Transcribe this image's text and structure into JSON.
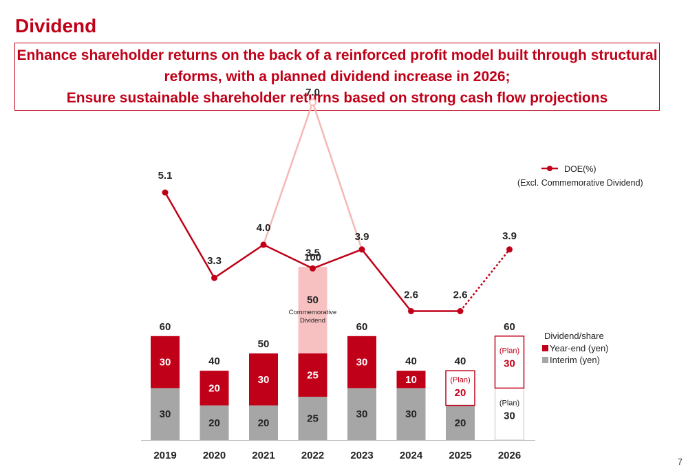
{
  "page": {
    "title": "Dividend",
    "page_number": "7"
  },
  "headline": {
    "line1": "Enhance shareholder returns on the back of a reinforced profit model built through structural",
    "line2": "reforms, with a planned dividend increase in 2026;",
    "line3": "Ensure sustainable shareholder returns based on strong cash flow projections"
  },
  "colors": {
    "brand": "#c00018",
    "interim": "#a6a6a6",
    "commemorative": "#f8c1c1",
    "doe_incl_commemorative": "#f5b8b4"
  },
  "chart_data": {
    "type": "bar",
    "stacked": true,
    "categories": [
      "2019",
      "2020",
      "2021",
      "2022",
      "2023",
      "2024",
      "2025",
      "2026"
    ],
    "series": [
      {
        "name": "Interim (yen)",
        "values": [
          30,
          20,
          20,
          25,
          30,
          30,
          20,
          30
        ],
        "labels": [
          "30",
          "20",
          "20",
          "25",
          "30",
          "30",
          "20",
          "30"
        ]
      },
      {
        "name": "Year-end (yen)",
        "values": [
          30,
          20,
          30,
          25,
          30,
          10,
          20,
          30
        ],
        "labels": [
          "30",
          "20",
          "30",
          "25",
          "30",
          "10",
          "20",
          "30"
        ]
      },
      {
        "name": "Commemorative Dividend",
        "values": [
          0,
          0,
          0,
          50,
          0,
          0,
          0,
          0
        ],
        "labels": [
          "",
          "",
          "",
          "50",
          "",
          "",
          "",
          ""
        ]
      }
    ],
    "totals": [
      "60",
      "40",
      "50",
      "100",
      "60",
      "40",
      "40",
      "60"
    ],
    "plan_tag": "(Plan)",
    "plan_flags": {
      "interim": [
        false,
        false,
        false,
        false,
        false,
        false,
        false,
        true
      ],
      "year_end": [
        false,
        false,
        false,
        false,
        false,
        false,
        true,
        true
      ]
    },
    "commemorative_label": [
      "Commemorative",
      "Dividend"
    ],
    "legend": {
      "title": "Dividend/share",
      "year_end": "Year-end (yen)",
      "interim": "Interim (yen)"
    },
    "bar_ylim": [
      0,
      100
    ],
    "doe": {
      "name": "DOE(%)",
      "subtitle": "(Excl. Commemorative Dividend)",
      "values": [
        5.1,
        3.3,
        4.0,
        3.5,
        3.9,
        2.6,
        2.6,
        3.9
      ],
      "labels": [
        "5.1",
        "3.3",
        "4.0",
        "3.5",
        "3.9",
        "2.6",
        "2.6",
        "3.9"
      ],
      "incl_commemorative": {
        "category": "2022",
        "value": 7.0,
        "label": "7.0"
      },
      "planned_from_index": 6
    }
  }
}
